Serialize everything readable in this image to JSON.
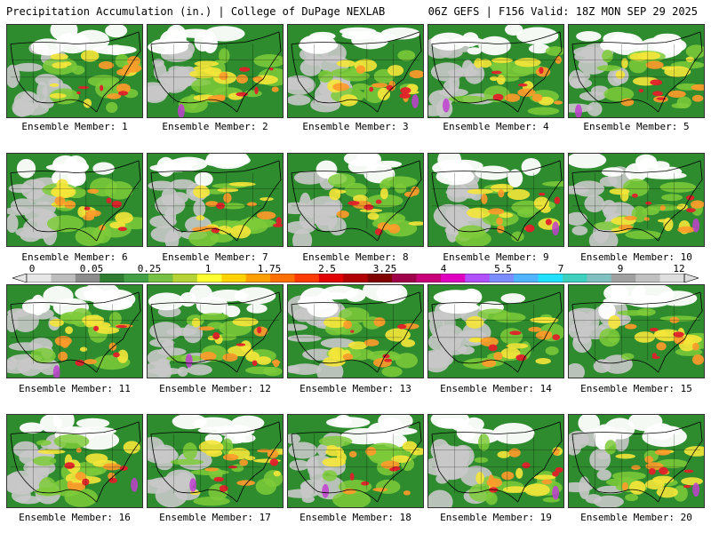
{
  "header": {
    "title": "Precipitation Accumulation (in.) | College of DuPage NEXLAB",
    "run_info": "06Z GEFS | F156 Valid: 18Z MON SEP 29 2025"
  },
  "caption_prefix": "Ensemble Member: ",
  "panels": [
    {
      "member": "1"
    },
    {
      "member": "2"
    },
    {
      "member": "3"
    },
    {
      "member": "4"
    },
    {
      "member": "5"
    },
    {
      "member": "6"
    },
    {
      "member": "7"
    },
    {
      "member": "8"
    },
    {
      "member": "9"
    },
    {
      "member": "10"
    },
    {
      "member": "11"
    },
    {
      "member": "12"
    },
    {
      "member": "13"
    },
    {
      "member": "14"
    },
    {
      "member": "15"
    },
    {
      "member": "16"
    },
    {
      "member": "17"
    },
    {
      "member": "18"
    },
    {
      "member": "19"
    },
    {
      "member": "20"
    }
  ],
  "captions": [
    "Ensemble Member: 1",
    "Ensemble Member: 2",
    "Ensemble Member: 3",
    "Ensemble Member: 4",
    "Ensemble Member: 5",
    "Ensemble Member: 6",
    "Ensemble Member: 7",
    "Ensemble Member: 8",
    "Ensemble Member: 9",
    "Ensemble Member: 10",
    "Ensemble Member: 11",
    "Ensemble Member: 12",
    "Ensemble Member: 13",
    "Ensemble Member: 14",
    "Ensemble Member: 15",
    "Ensemble Member: 16",
    "Ensemble Member: 17",
    "Ensemble Member: 18",
    "Ensemble Member: 19",
    "Ensemble Member: 20"
  ],
  "colorbar": {
    "labels": [
      "0",
      "0.05",
      "0.25",
      "1",
      "1.75",
      "2.5",
      "3.25",
      "4",
      "5.5",
      "7",
      "9",
      "12"
    ],
    "colors": [
      "#e6e6e6",
      "#bdbdbd",
      "#8c8c8c",
      "#2e7d32",
      "#43a047",
      "#76c043",
      "#b5d334",
      "#ffff33",
      "#ffd200",
      "#ffa000",
      "#ff7000",
      "#ff3c00",
      "#e00000",
      "#b00000",
      "#800000",
      "#a0004a",
      "#c8007a",
      "#e000c0",
      "#b050ff",
      "#7a8cff",
      "#50b4ff",
      "#22e0ff",
      "#40d0c0",
      "#80c0c0",
      "#a0a0a0",
      "#c0c0c0",
      "#dedede"
    ],
    "map_palette": {
      "land_base": "#2e8b2e",
      "dry": "#c8c8c8",
      "snow": "#ffffff",
      "light": "#7ecb3a",
      "moderate": "#f5e63a",
      "heavy": "#ff9a2a",
      "very_heavy": "#e0202a",
      "extreme": "#c040d0",
      "outline": "#000000"
    }
  }
}
